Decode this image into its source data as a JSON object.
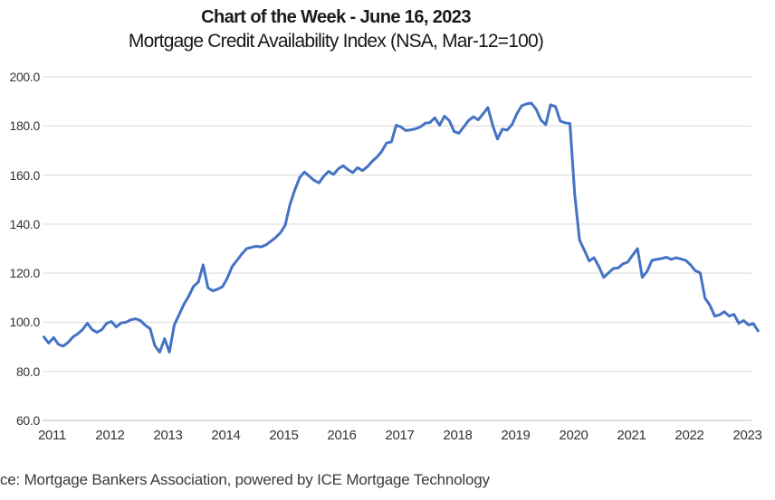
{
  "title": "Chart of the Week - June 16, 2023",
  "subtitle": "Mortgage Credit Availability Index (NSA, Mar-12=100)",
  "source_note": "ce: Mortgage Bankers Association, powered by ICE Mortgage Technology",
  "theme": {
    "line_color": "#4472C4",
    "gridline_color": "#D9D9D9",
    "axis_line_color": "#BFBFBF",
    "axis_text_color": "#333333",
    "background_color": "#FFFFFF"
  },
  "chart_data": {
    "type": "line",
    "title": "Chart of the Week - June 16, 2023",
    "subtitle": "Mortgage Credit Availability Index (NSA, Mar-12=100)",
    "series_name": "Mortgage Credit Availability Index (NSA, Mar-12=100)",
    "x_start": "2011-01",
    "x_interval": "monthly",
    "x_tick_labels": [
      "2011",
      "2012",
      "2013",
      "2014",
      "2015",
      "2016",
      "2017",
      "2018",
      "2019",
      "2020",
      "2021",
      "2022",
      "2023"
    ],
    "y_tick_labels": [
      "200.0",
      "180.0",
      "160.0",
      "140.0",
      "120.0",
      "100.0",
      "80.0",
      "60.0"
    ],
    "y_tick_values": [
      200,
      180,
      160,
      140,
      120,
      100,
      80,
      60
    ],
    "ylim": [
      60,
      200
    ],
    "grid": "horizontal",
    "legend_position": "none",
    "values": [
      94.0,
      91.5,
      93.8,
      91.0,
      90.3,
      91.8,
      94.0,
      95.3,
      97.0,
      99.6,
      97.0,
      95.9,
      97.0,
      99.6,
      100.3,
      98.1,
      99.7,
      100.0,
      101.0,
      101.4,
      100.7,
      98.8,
      97.4,
      90.4,
      87.8,
      93.3,
      87.8,
      98.8,
      103.0,
      107.3,
      110.6,
      114.6,
      116.4,
      123.4,
      114.0,
      112.8,
      113.5,
      114.5,
      117.9,
      122.7,
      125.2,
      127.8,
      130.0,
      130.5,
      131.0,
      130.7,
      131.5,
      133.0,
      134.5,
      136.5,
      139.5,
      148.0,
      154.0,
      159.0,
      161.2,
      159.5,
      157.8,
      156.8,
      159.5,
      161.5,
      160.2,
      162.5,
      163.8,
      162.2,
      161.0,
      163.0,
      161.8,
      163.3,
      165.5,
      167.3,
      169.6,
      173.0,
      173.5,
      180.3,
      179.6,
      178.1,
      178.4,
      178.8,
      179.6,
      181.1,
      181.4,
      183.3,
      180.3,
      184.0,
      182.2,
      177.7,
      177.0,
      179.6,
      182.2,
      183.7,
      182.5,
      184.9,
      187.5,
      180.2,
      174.7,
      178.7,
      178.3,
      180.5,
      184.9,
      188.2,
      189.0,
      189.3,
      186.8,
      182.4,
      180.5,
      188.6,
      187.9,
      182.0,
      181.3,
      181.0,
      152.1,
      133.5,
      129.3,
      125.0,
      126.3,
      122.7,
      118.3,
      120.1,
      121.9,
      122.1,
      123.8,
      124.5,
      127.4,
      130.0,
      118.3,
      120.8,
      125.2,
      125.6,
      126.0,
      126.5,
      125.6,
      126.3,
      125.8,
      125.2,
      123.4,
      121.0,
      120.1,
      109.8,
      107.0,
      102.5,
      103.0,
      104.3,
      102.5,
      103.2,
      99.6,
      100.7,
      98.9,
      99.5,
      96.5
    ]
  }
}
